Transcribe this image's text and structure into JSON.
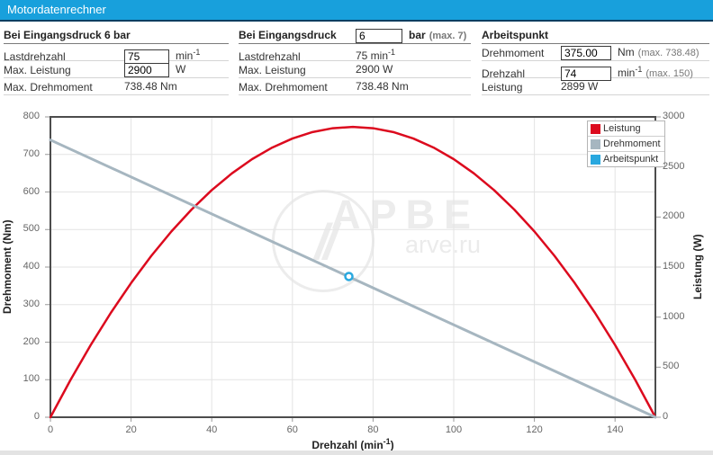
{
  "header": {
    "title": "Motordatenrechner",
    "bg_color": "#18a0dc",
    "border_color": "#0c3e61"
  },
  "panels": {
    "left": {
      "heading": "Bei Eingangsdruck 6 bar",
      "rows": {
        "lastdrehzahl": {
          "label": "Lastdrehzahl",
          "value": "75",
          "unit": "min",
          "sup": "-1"
        },
        "max_leistung": {
          "label": "Max. Leistung",
          "value": "2900",
          "unit": "W"
        },
        "max_drehmoment": {
          "label": "Max. Drehmoment",
          "value": "738.48 Nm"
        }
      }
    },
    "middle": {
      "heading_label": "Bei Eingangsdruck",
      "input_value": "6",
      "unit": "bar",
      "note": "(max. 7)",
      "rows": {
        "lastdrehzahl": {
          "label": "Lastdrehzahl",
          "value": "75 min",
          "sup": "-1"
        },
        "max_leistung": {
          "label": "Max. Leistung",
          "value": "2900 W"
        },
        "max_drehmoment": {
          "label": "Max. Drehmoment",
          "value": "738.48 Nm"
        }
      }
    },
    "right": {
      "heading": "Arbeitspunkt",
      "rows": {
        "drehmoment": {
          "label": "Drehmoment",
          "value": "375.00",
          "unit": "Nm",
          "note": "(max. 738.48)"
        },
        "drehzahl": {
          "label": "Drehzahl",
          "value": "74",
          "unit": "min",
          "sup": "-1",
          "note": "(max. 150)"
        },
        "leistung": {
          "label": "Leistung",
          "value": "2899 W"
        }
      }
    }
  },
  "chart_data": {
    "type": "line",
    "xlabel_base": "Drehzahl (min",
    "xlabel_sup": "-1",
    "xlabel_end": ")",
    "ylabel_left": "Drehmoment (Nm)",
    "ylabel_right": "Leistung (W)",
    "xlim": [
      0,
      150
    ],
    "ylim_left": [
      0,
      800
    ],
    "ylim_right": [
      0,
      3000
    ],
    "x_ticks": [
      0,
      20,
      40,
      60,
      80,
      100,
      120,
      140
    ],
    "y_ticks_left": [
      0,
      100,
      200,
      300,
      400,
      500,
      600,
      700,
      800
    ],
    "y_ticks_right": [
      0,
      500,
      1000,
      1500,
      2000,
      2500,
      3000
    ],
    "grid": true,
    "legend_position": "top-right",
    "series": [
      {
        "name": "Leistung",
        "type": "line",
        "axis": "right",
        "color": "#dc0a1e",
        "width": 2.5,
        "x": [
          0,
          5,
          10,
          15,
          20,
          25,
          30,
          35,
          40,
          45,
          50,
          55,
          60,
          65,
          70,
          75,
          80,
          85,
          90,
          95,
          100,
          105,
          110,
          115,
          120,
          125,
          130,
          135,
          140,
          145,
          150
        ],
        "values": [
          0,
          373.8,
          721.9,
          1044.2,
          1340.4,
          1611.1,
          1856.0,
          2075.1,
          2268.4,
          2436.0,
          2577.8,
          2693.8,
          2784.0,
          2848.5,
          2887.1,
          2900.0,
          2887.1,
          2848.5,
          2784.0,
          2693.8,
          2577.8,
          2436.0,
          2268.4,
          2075.1,
          1856.0,
          1611.1,
          1340.4,
          1044.2,
          721.9,
          373.8,
          0
        ]
      },
      {
        "name": "Drehmoment",
        "type": "line",
        "axis": "left",
        "color": "#a6b6c0",
        "width": 3,
        "x": [
          0,
          150
        ],
        "values": [
          738.48,
          0
        ]
      },
      {
        "name": "Arbeitspunkt",
        "type": "point",
        "axis": "left",
        "color": "#29a8df",
        "x": [
          74
        ],
        "values": [
          375
        ]
      }
    ]
  },
  "watermark": {
    "title": "АРВЕ",
    "subtitle": "arve.ru",
    "logo_glyph": "//"
  }
}
